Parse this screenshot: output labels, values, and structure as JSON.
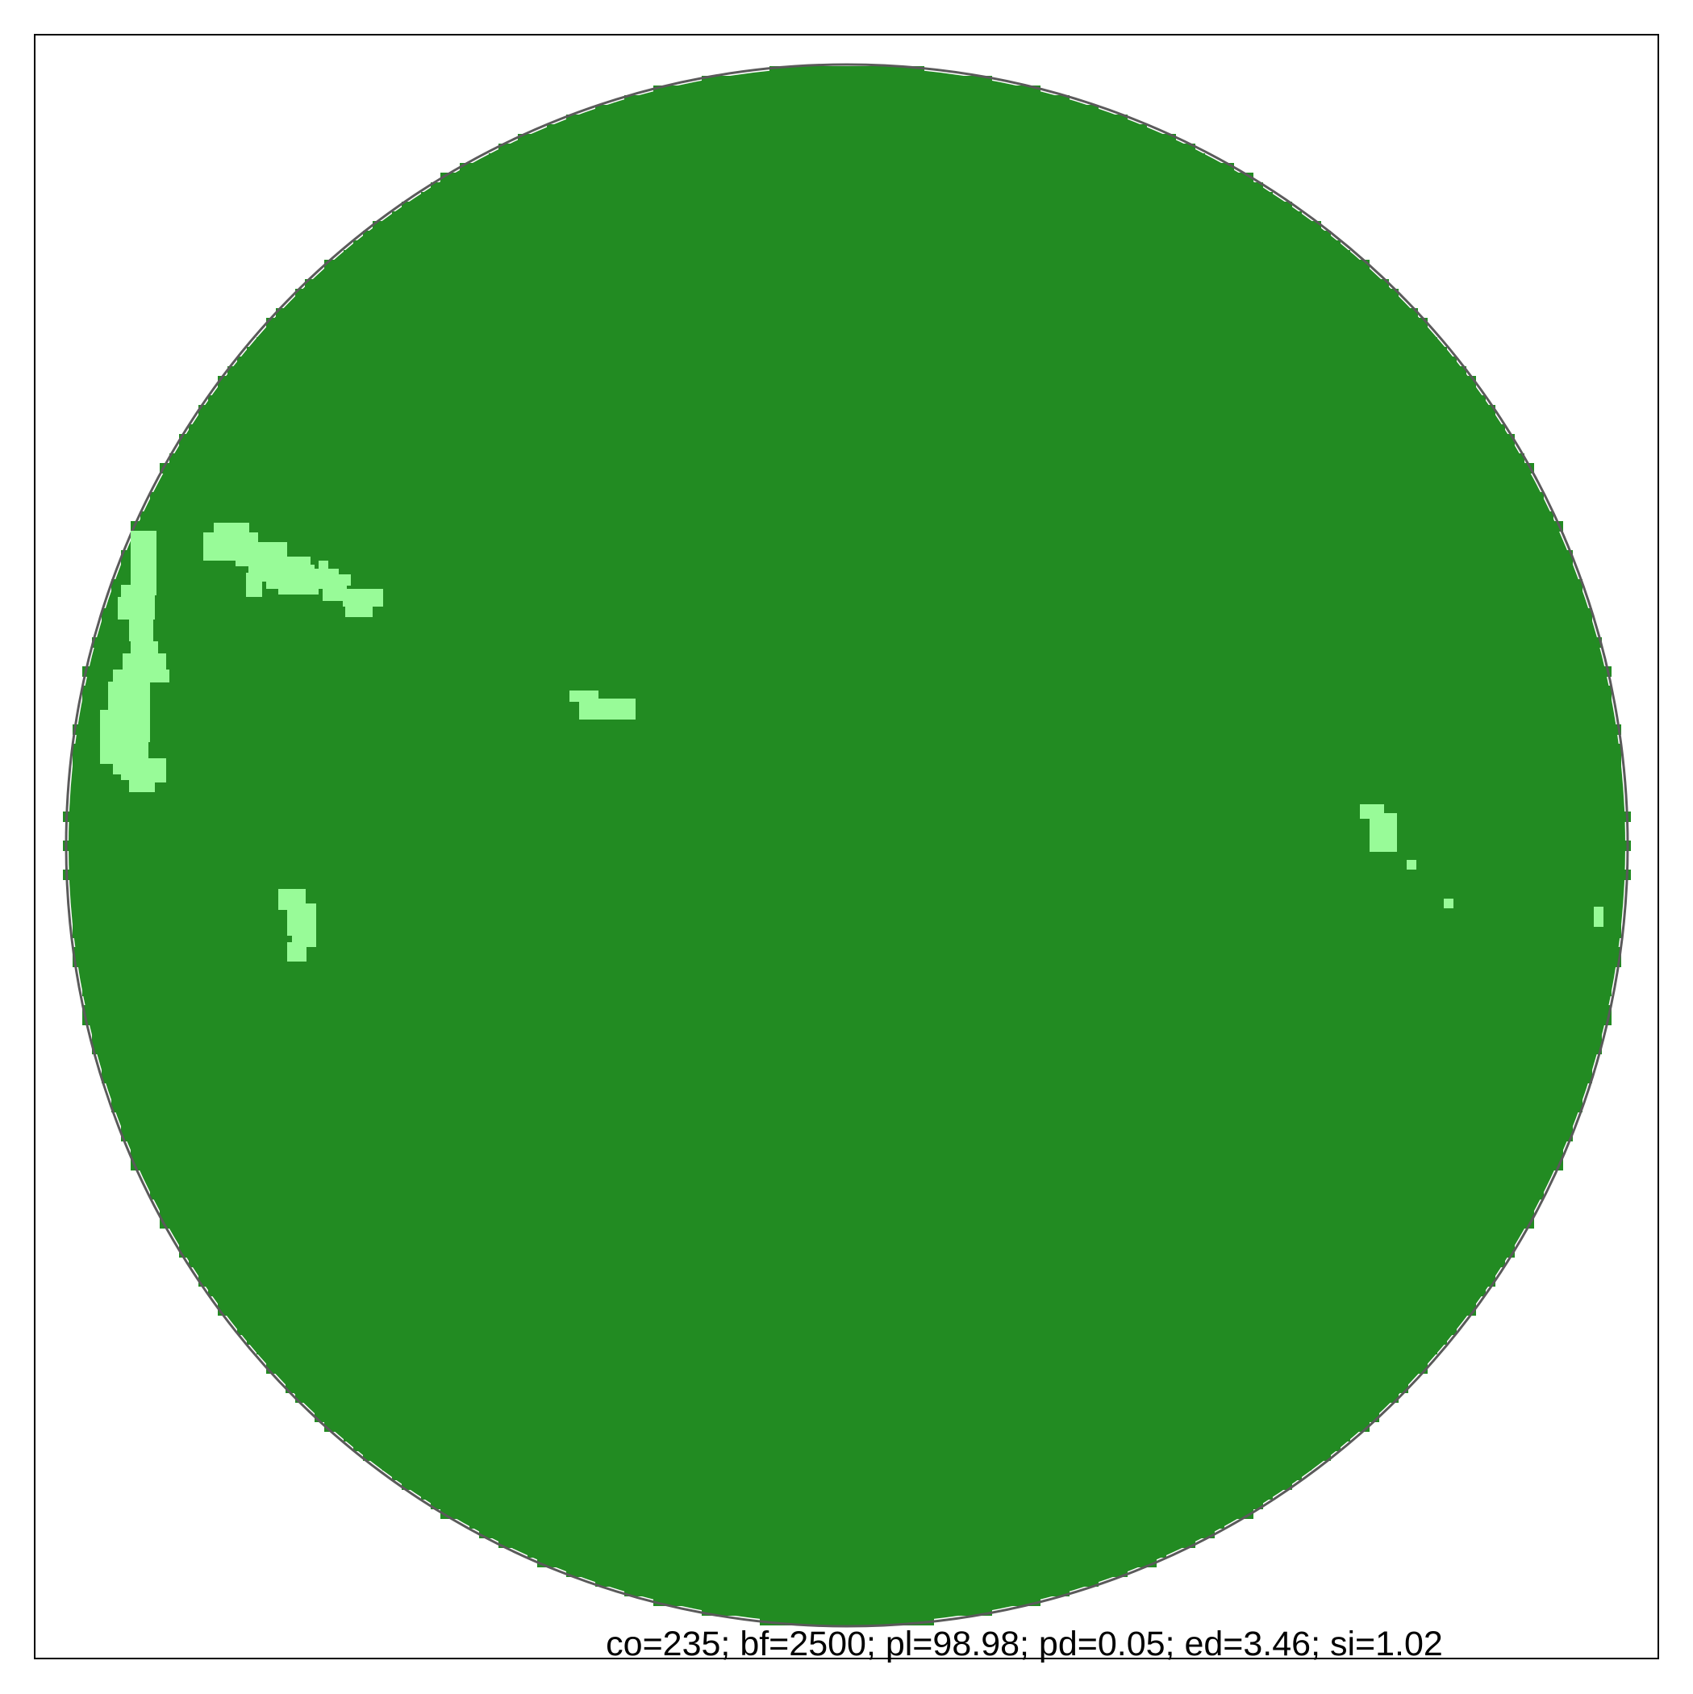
{
  "caption": "co=235; bf=2500; pl=98.98; pd=0.05; ed=3.46; si=1.02",
  "colors": {
    "frame": "#000000",
    "outline": "#5a5a5a",
    "disc": "#228B22",
    "patch": "#98FB98",
    "background": "#ffffff"
  }
}
